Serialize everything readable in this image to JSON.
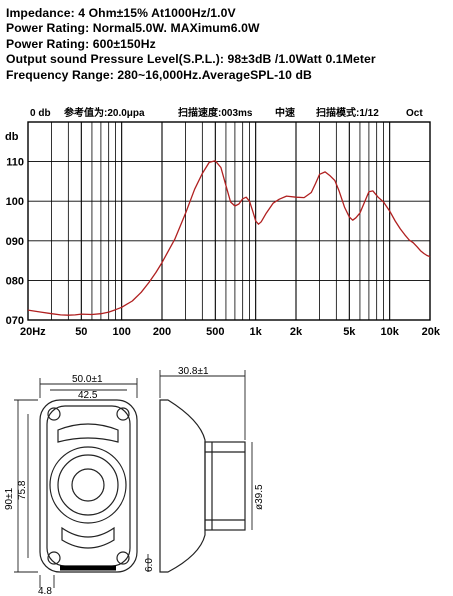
{
  "specs": [
    "Impedance: 4 Ohm±15%  At1000Hz/1.0V",
    "Power Rating: Normal5.0W. MAXimum6.0W",
    "Power Rating: 600±150Hz",
    "Output sound Pressure Level(S.P.L.): 98±3dB /1.0Watt 0.1Meter",
    "Frequency Range: 280~16,000Hz.AverageSPL-10 dB"
  ],
  "chart_data": {
    "type": "line",
    "header": {
      "left": "0 db",
      "ref": "参考值为:20.0μpa",
      "sweep": "扫描速度:003ms",
      "speed": "中速",
      "mode": "扫描模式:1/12",
      "oct": "Oct"
    },
    "ylabel": "db",
    "xscale": "log",
    "xlim": [
      20,
      20000
    ],
    "ylim": [
      70,
      120
    ],
    "grid": true,
    "yticks": [
      {
        "value": 110,
        "label": "110"
      },
      {
        "value": 100,
        "label": "100"
      },
      {
        "value": 90,
        "label": "090"
      },
      {
        "value": 80,
        "label": "080"
      },
      {
        "value": 70,
        "label": "070"
      }
    ],
    "xticks": [
      {
        "value": 20,
        "label": "20Hz"
      },
      {
        "value": 50,
        "label": "50"
      },
      {
        "value": 100,
        "label": "100"
      },
      {
        "value": 200,
        "label": "200"
      },
      {
        "value": 500,
        "label": "500"
      },
      {
        "value": 1000,
        "label": "1k"
      },
      {
        "value": 2000,
        "label": "2k"
      },
      {
        "value": 5000,
        "label": "5k"
      },
      {
        "value": 10000,
        "label": "10k"
      },
      {
        "value": 20000,
        "label": "20k"
      }
    ],
    "series": [
      {
        "color": "#b02020",
        "points": [
          [
            20,
            72.5
          ],
          [
            25,
            72.0
          ],
          [
            30,
            71.6
          ],
          [
            35,
            71.3
          ],
          [
            40,
            71.2
          ],
          [
            45,
            71.3
          ],
          [
            50,
            71.5
          ],
          [
            60,
            71.4
          ],
          [
            70,
            71.6
          ],
          [
            80,
            72.0
          ],
          [
            90,
            72.6
          ],
          [
            100,
            73.2
          ],
          [
            120,
            74.8
          ],
          [
            140,
            77.0
          ],
          [
            160,
            79.5
          ],
          [
            180,
            82.0
          ],
          [
            200,
            84.5
          ],
          [
            250,
            90.5
          ],
          [
            300,
            97.0
          ],
          [
            350,
            103.0
          ],
          [
            400,
            107.0
          ],
          [
            450,
            109.8
          ],
          [
            500,
            110.2
          ],
          [
            550,
            108.5
          ],
          [
            600,
            104.0
          ],
          [
            650,
            99.8
          ],
          [
            700,
            98.8
          ],
          [
            750,
            99.3
          ],
          [
            800,
            100.6
          ],
          [
            850,
            101.0
          ],
          [
            900,
            100.0
          ],
          [
            950,
            97.5
          ],
          [
            1000,
            95.0
          ],
          [
            1050,
            94.2
          ],
          [
            1100,
            94.8
          ],
          [
            1200,
            97.0
          ],
          [
            1350,
            99.5
          ],
          [
            1500,
            100.5
          ],
          [
            1700,
            101.3
          ],
          [
            2000,
            101.0
          ],
          [
            2300,
            100.9
          ],
          [
            2600,
            102.2
          ],
          [
            2800,
            104.5
          ],
          [
            3000,
            106.8
          ],
          [
            3300,
            107.4
          ],
          [
            3600,
            106.4
          ],
          [
            3900,
            105.2
          ],
          [
            4200,
            102.5
          ],
          [
            4600,
            98.5
          ],
          [
            5000,
            96.0
          ],
          [
            5300,
            95.2
          ],
          [
            5600,
            95.8
          ],
          [
            6000,
            97.0
          ],
          [
            6500,
            99.8
          ],
          [
            7000,
            102.4
          ],
          [
            7500,
            102.6
          ],
          [
            8200,
            101.0
          ],
          [
            9000,
            99.8
          ],
          [
            10000,
            97.5
          ],
          [
            11000,
            95.0
          ],
          [
            12000,
            93.0
          ],
          [
            13000,
            91.5
          ],
          [
            14000,
            90.2
          ],
          [
            15000,
            89.5
          ],
          [
            16000,
            88.5
          ],
          [
            17000,
            87.5
          ],
          [
            18000,
            86.8
          ],
          [
            19000,
            86.3
          ],
          [
            20000,
            86.0
          ]
        ]
      }
    ]
  },
  "drawing": {
    "width_label": "50.0±1",
    "inner_label": "42.5",
    "depth_label": "30.8±1",
    "height_label": "90±1",
    "inner_height_label": "75.8",
    "diameter_label": "ø39.5",
    "foot_label": "4.8",
    "ear_label": "6.0"
  }
}
